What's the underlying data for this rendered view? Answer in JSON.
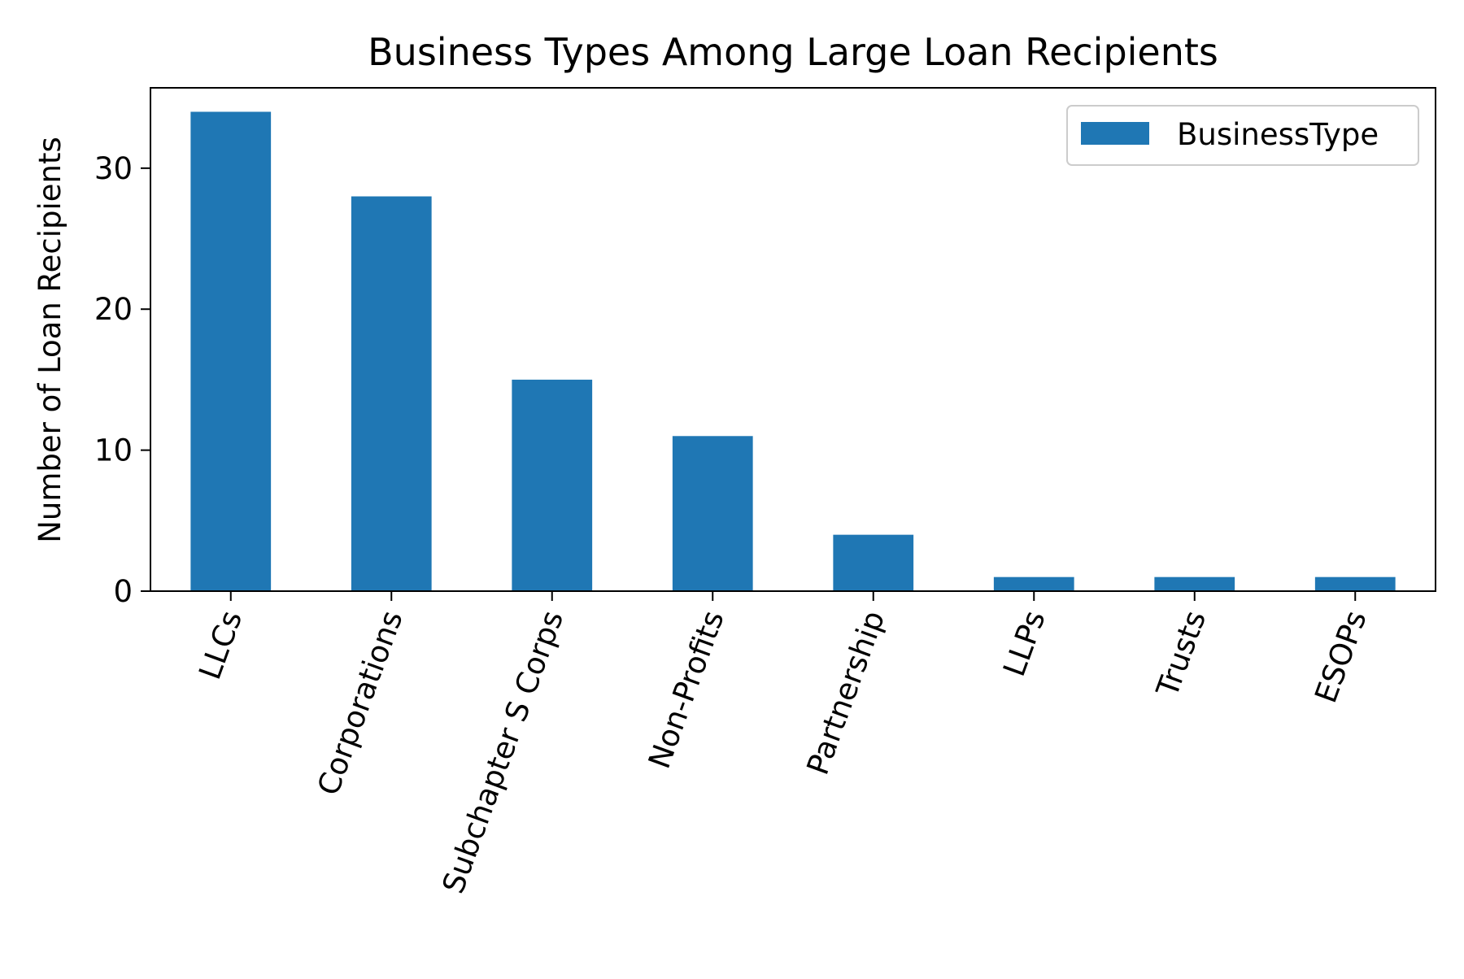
{
  "chart_data": {
    "type": "bar",
    "title": "Business Types Among Large Loan Recipients",
    "xlabel": "",
    "ylabel": "Number of Loan Recipients",
    "categories": [
      "LLCs",
      "Corporations",
      "Subchapter S Corps",
      "Non-Profits",
      "Partnership",
      "LLPs",
      "Trusts",
      "ESOPs"
    ],
    "series": [
      {
        "name": "BusinessType",
        "values": [
          34,
          28,
          15,
          11,
          4,
          1,
          1,
          1
        ],
        "color": "#1f77b4"
      }
    ],
    "ylim": [
      0,
      35.7
    ],
    "yticks": [
      0,
      10,
      20,
      30
    ],
    "grid": false,
    "legend": {
      "position": "top-right",
      "entries": [
        "BusinessType"
      ]
    }
  }
}
